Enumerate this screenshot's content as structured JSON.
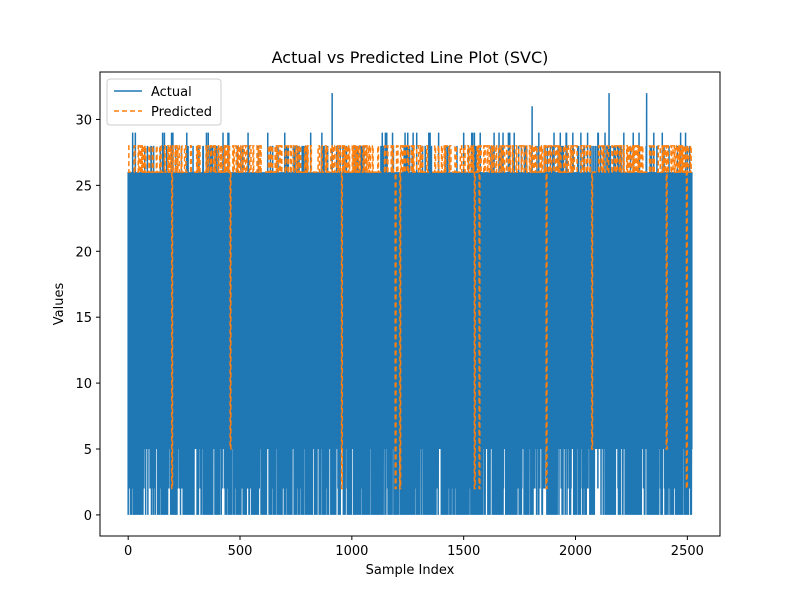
{
  "chart_data": {
    "type": "line",
    "title": "Actual vs Predicted Line Plot (SVC)",
    "xlabel": "Sample Index",
    "ylabel": "Values",
    "xlim": [
      -126,
      2646
    ],
    "ylim": [
      -1.6,
      33.6
    ],
    "xticks": [
      0,
      500,
      1000,
      1500,
      2000,
      2500
    ],
    "yticks": [
      0,
      5,
      10,
      15,
      20,
      25,
      30
    ],
    "legend_position": "top-left",
    "grid": false,
    "series": [
      {
        "name": "Actual",
        "color": "#1f77b4",
        "style": "solid",
        "x_range": [
          0,
          2520
        ],
        "typical_high": 26,
        "low_values": [
          0,
          5,
          2,
          11
        ],
        "spikes": [
          {
            "x": 912,
            "y": 32
          },
          {
            "x": 1806,
            "y": 31
          },
          {
            "x": 2150,
            "y": 32
          },
          {
            "x": 2318,
            "y": 32
          },
          {
            "x": 20,
            "y": 29
          },
          {
            "x": 200,
            "y": 29
          },
          {
            "x": 350,
            "y": 29
          },
          {
            "x": 700,
            "y": 29
          },
          {
            "x": 1150,
            "y": 29
          },
          {
            "x": 1350,
            "y": 29
          },
          {
            "x": 1500,
            "y": 29
          },
          {
            "x": 1700,
            "y": 29
          },
          {
            "x": 1960,
            "y": 29
          },
          {
            "x": 2100,
            "y": 29
          },
          {
            "x": 2470,
            "y": 29
          }
        ]
      },
      {
        "name": "Predicted",
        "color": "#ff7f0e",
        "style": "dashed",
        "x_range": [
          0,
          2520
        ],
        "base_value": 26,
        "high_value": 28,
        "drops": [
          {
            "x": 196,
            "y": 2
          },
          {
            "x": 455,
            "y": 5
          },
          {
            "x": 953,
            "y": 2
          },
          {
            "x": 1195,
            "y": 2
          },
          {
            "x": 1215,
            "y": 2
          },
          {
            "x": 1548,
            "y": 2
          },
          {
            "x": 1570,
            "y": 2
          },
          {
            "x": 1870,
            "y": 2
          },
          {
            "x": 2072,
            "y": 5
          },
          {
            "x": 2405,
            "y": 5
          },
          {
            "x": 2497,
            "y": 2
          }
        ]
      }
    ]
  }
}
